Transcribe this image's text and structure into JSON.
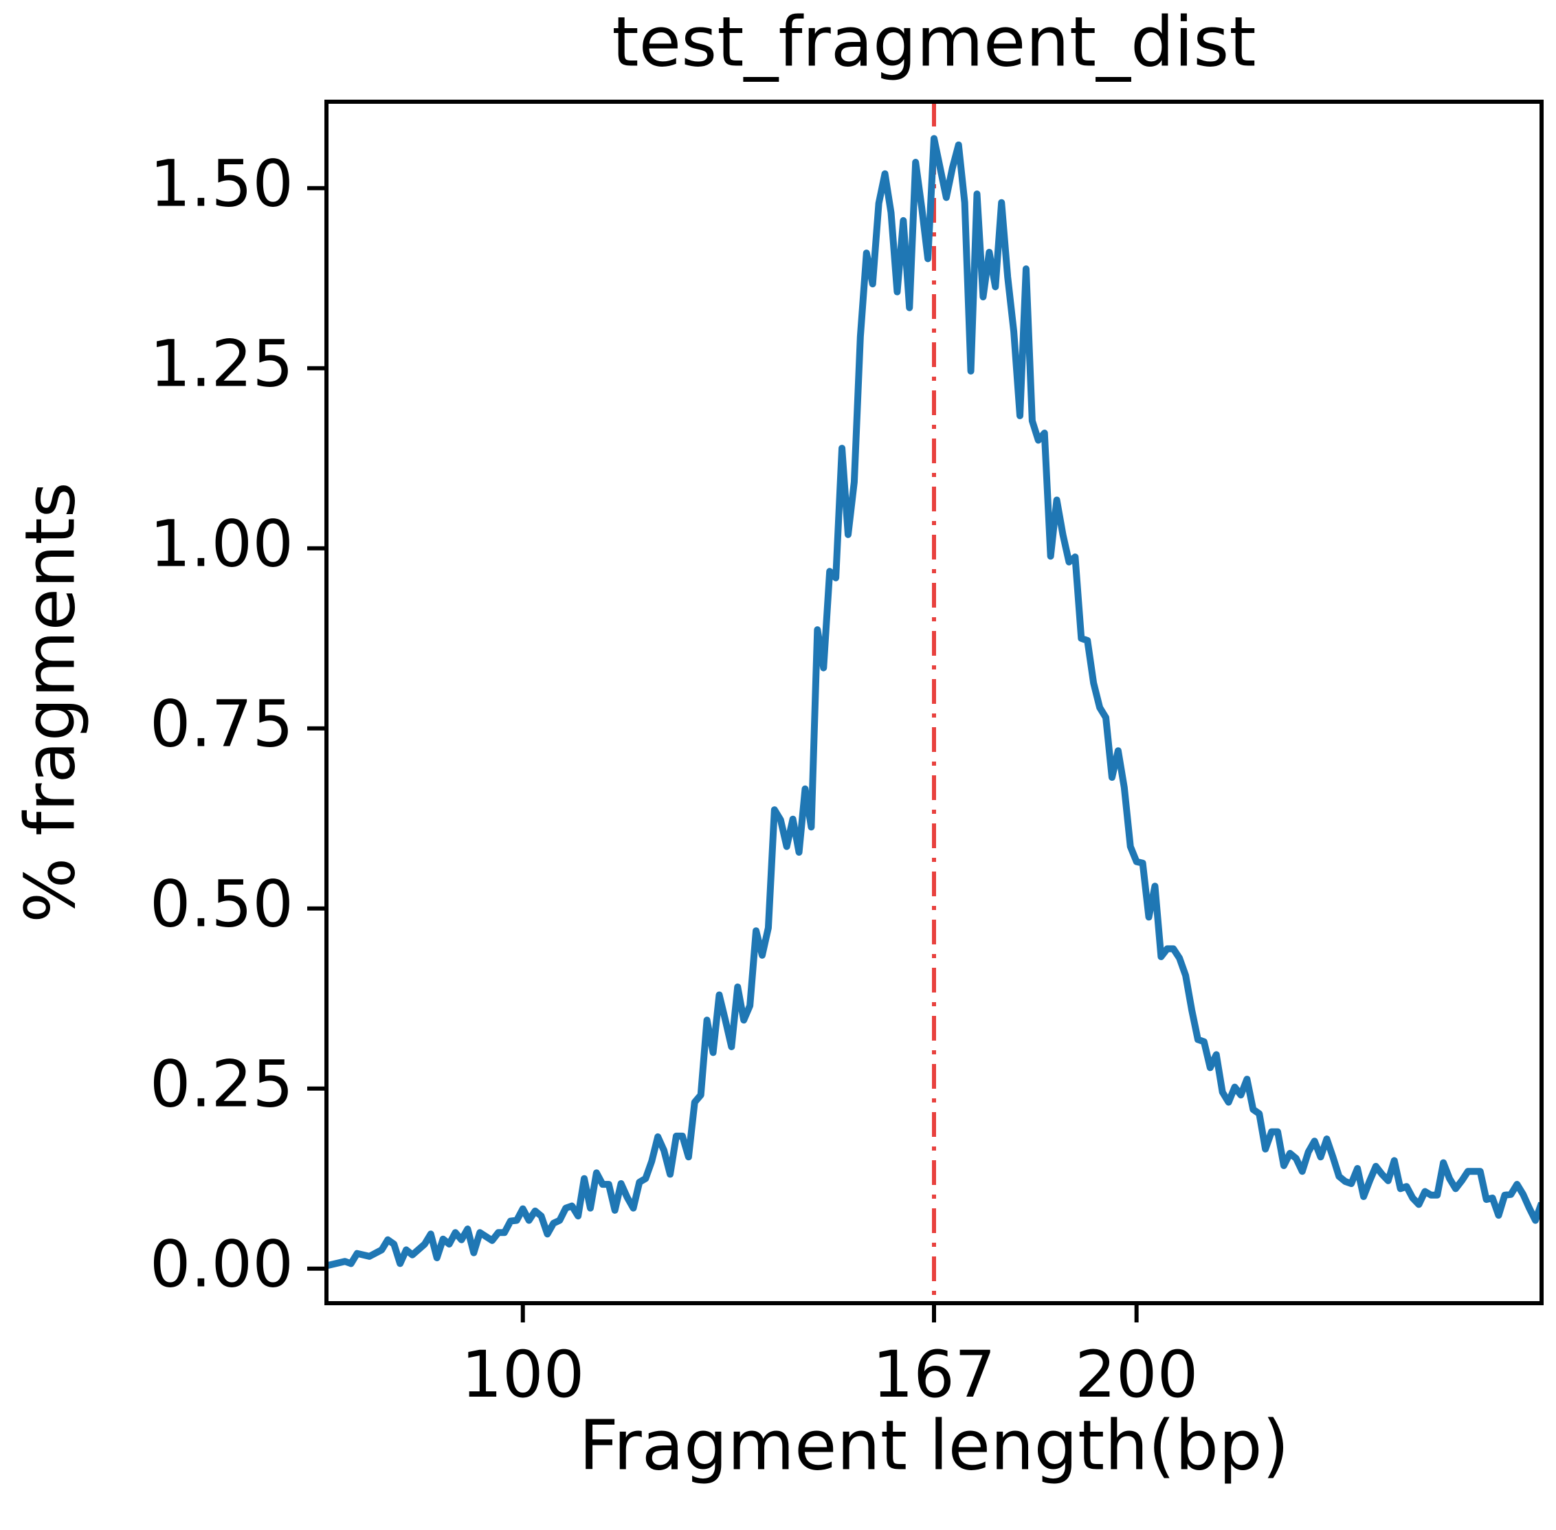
{
  "chart_data": {
    "type": "line",
    "title": "test_fragment_dist",
    "x_label": "Fragment length(bp)",
    "y_label": "% fragments",
    "x": [
      68,
      71,
      72,
      73,
      75,
      77,
      78,
      79,
      80,
      81,
      82,
      84,
      85,
      86,
      87,
      88,
      89,
      90,
      91,
      92,
      93,
      95,
      96,
      97,
      98,
      99,
      100,
      101,
      102,
      103,
      104,
      105,
      106,
      107,
      108,
      109,
      110,
      111,
      112,
      113,
      114,
      115,
      116,
      117,
      118,
      119,
      120,
      121,
      122,
      123,
      124,
      125,
      126,
      127,
      128,
      129,
      130,
      131,
      132,
      133,
      134,
      135,
      136,
      137,
      138,
      139,
      140,
      141,
      142,
      143,
      144,
      145,
      146,
      147,
      148,
      149,
      150,
      151,
      152,
      153,
      154,
      155,
      156,
      157,
      158,
      159,
      160,
      161,
      162,
      163,
      164,
      165,
      166,
      167,
      168,
      169,
      170,
      171,
      172,
      173,
      174,
      175,
      176,
      177,
      178,
      179,
      180,
      181,
      182,
      183,
      184,
      185,
      186,
      187,
      188,
      189,
      190,
      191,
      192,
      193,
      194,
      195,
      196,
      197,
      198,
      199,
      200,
      201,
      202,
      203,
      204,
      205,
      206,
      207,
      208,
      209,
      210,
      211,
      212,
      213,
      214,
      215,
      216,
      217,
      218,
      219,
      220,
      221,
      222,
      223,
      224,
      225,
      226,
      227,
      228,
      229,
      230,
      231,
      232,
      233,
      234,
      235,
      236,
      237,
      238,
      239,
      240,
      241,
      242,
      243,
      244,
      245,
      246,
      247,
      248,
      249,
      250,
      251,
      252,
      253,
      254,
      255,
      256,
      257,
      258,
      259,
      260,
      261,
      262,
      263,
      264,
      265,
      266
    ],
    "series": [
      {
        "color": "#1f77b4",
        "values": [
          0.004,
          0.01,
          0.007,
          0.021,
          0.017,
          0.026,
          0.04,
          0.034,
          0.007,
          0.026,
          0.019,
          0.034,
          0.048,
          0.015,
          0.041,
          0.034,
          0.05,
          0.04,
          0.055,
          0.022,
          0.05,
          0.039,
          0.05,
          0.05,
          0.066,
          0.067,
          0.083,
          0.067,
          0.08,
          0.073,
          0.048,
          0.063,
          0.067,
          0.084,
          0.087,
          0.073,
          0.125,
          0.084,
          0.133,
          0.117,
          0.117,
          0.081,
          0.118,
          0.099,
          0.084,
          0.12,
          0.125,
          0.149,
          0.183,
          0.164,
          0.131,
          0.184,
          0.184,
          0.155,
          0.231,
          0.241,
          0.345,
          0.3,
          0.38,
          0.345,
          0.308,
          0.391,
          0.345,
          0.365,
          0.469,
          0.435,
          0.473,
          0.637,
          0.623,
          0.586,
          0.624,
          0.578,
          0.666,
          0.613,
          0.887,
          0.834,
          0.968,
          0.959,
          1.139,
          1.019,
          1.092,
          1.294,
          1.41,
          1.367,
          1.479,
          1.52,
          1.466,
          1.356,
          1.455,
          1.334,
          1.536,
          1.473,
          1.402,
          1.569,
          1.528,
          1.487,
          1.528,
          1.56,
          1.48,
          1.246,
          1.492,
          1.349,
          1.411,
          1.363,
          1.48,
          1.377,
          1.301,
          1.184,
          1.388,
          1.177,
          1.15,
          1.16,
          0.989,
          1.067,
          1.019,
          0.981,
          0.988,
          0.875,
          0.872,
          0.813,
          0.779,
          0.765,
          0.682,
          0.719,
          0.668,
          0.586,
          0.565,
          0.563,
          0.488,
          0.531,
          0.433,
          0.444,
          0.444,
          0.431,
          0.407,
          0.359,
          0.318,
          0.315,
          0.279,
          0.297,
          0.245,
          0.231,
          0.252,
          0.241,
          0.263,
          0.221,
          0.215,
          0.166,
          0.19,
          0.19,
          0.143,
          0.16,
          0.153,
          0.135,
          0.162,
          0.177,
          0.155,
          0.18,
          0.155,
          0.128,
          0.121,
          0.118,
          0.139,
          0.1,
          0.122,
          0.142,
          0.131,
          0.122,
          0.15,
          0.111,
          0.114,
          0.098,
          0.089,
          0.107,
          0.102,
          0.102,
          0.147,
          0.125,
          0.111,
          0.122,
          0.135,
          0.135,
          0.135,
          0.096,
          0.098,
          0.074,
          0.102,
          0.103,
          0.117,
          0.103,
          0.084,
          0.067,
          0.091
        ]
      }
    ],
    "xlim": [
      68,
      266
    ],
    "ylim": [
      -0.048,
      1.62
    ],
    "xticks": [
      100,
      167,
      200
    ],
    "yticks": [
      {
        "value": 0,
        "label": "0.00"
      },
      0.25,
      {
        "value": 0.5,
        "label": "0.50"
      },
      0.75,
      {
        "value": 1,
        "label": "1.00"
      },
      1.25,
      {
        "value": 1.5,
        "label": "1.50"
      }
    ],
    "vline": 167,
    "vline_color": "#e8413e",
    "grid": false
  }
}
